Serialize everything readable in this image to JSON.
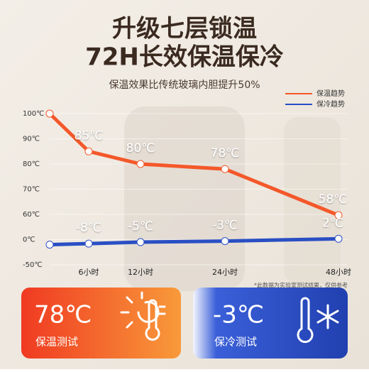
{
  "header": {
    "title_line1": "升级七层锁温",
    "title_line2": "72H长效保温保冷",
    "subtitle": "保温效果比传统玻璃内胆提升50%"
  },
  "chart_data": {
    "type": "line",
    "categories": [
      null,
      "6小时",
      "12小时",
      "24小时",
      "48小时"
    ],
    "series": [
      {
        "name": "保温趋势",
        "color": "#f4582a",
        "values": [
          100,
          85,
          80,
          78,
          58
        ],
        "value_labels": [
          null,
          "85℃",
          "80℃",
          "78℃",
          "58℃"
        ]
      },
      {
        "name": "保冷趋势",
        "color": "#2a4fc4",
        "values": [
          -10,
          -8,
          -5,
          -3,
          2
        ],
        "value_labels": [
          null,
          "-8℃",
          "-5℃",
          "-3℃",
          "2℃"
        ]
      }
    ],
    "ylim": [
      -50,
      100
    ],
    "yticks": [
      {
        "value": -50,
        "label": "-50℃"
      },
      {
        "value": 0,
        "label": "0℃"
      },
      {
        "value": 60,
        "label": "60℃"
      },
      {
        "value": 70,
        "label": "70℃"
      },
      {
        "value": 80,
        "label": "80℃"
      },
      {
        "value": 90,
        "label": "90℃"
      },
      {
        "value": 100,
        "label": "100℃"
      }
    ],
    "grid": true,
    "legend": "top-right",
    "annotation": "*此数据为实验室测试结果，仅供参考"
  },
  "cards": [
    {
      "value": "78℃",
      "label": "保温测试"
    },
    {
      "value": "-3℃",
      "label": "保冷测试"
    }
  ]
}
